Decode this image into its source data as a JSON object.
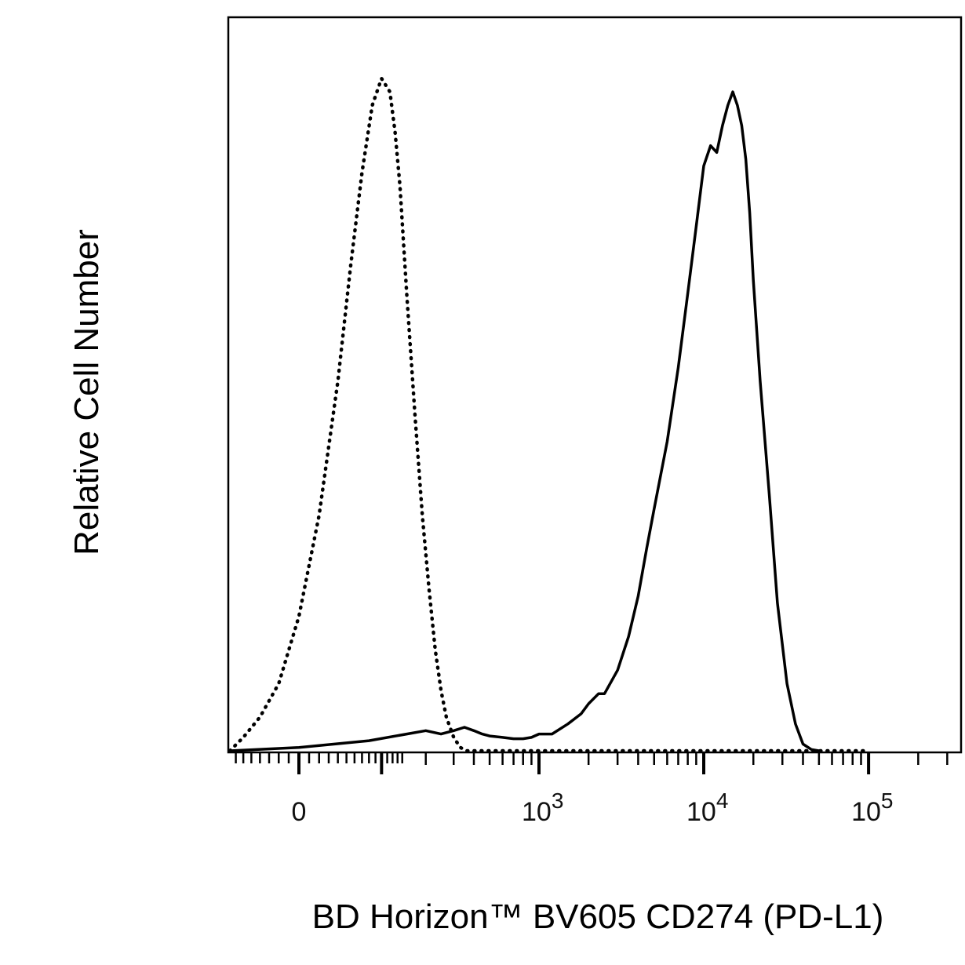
{
  "chart_data": {
    "type": "line",
    "title": "",
    "xlabel": "BD Horizon™ BV605 CD274 (PD-L1)",
    "ylabel": "Relative Cell Number",
    "x_scale": "biexponential",
    "xlim": [
      -150,
      200000
    ],
    "ylim": [
      0,
      1
    ],
    "grid": false,
    "legend": "none",
    "x_tick_labels": [
      {
        "value": 0,
        "base": "0",
        "exp": ""
      },
      {
        "value": 1000,
        "base": "10",
        "exp": "3"
      },
      {
        "value": 10000,
        "base": "10",
        "exp": "4"
      },
      {
        "value": 100000,
        "base": "10",
        "exp": "5"
      }
    ],
    "series": [
      {
        "style": "dotted",
        "color": "#000000",
        "x": [
          -90,
          -60,
          -40,
          -20,
          0,
          20,
          40,
          55,
          70,
          85,
          100,
          115,
          125,
          135,
          150,
          170,
          190,
          210,
          230,
          250,
          270,
          300,
          330,
          360,
          400,
          1000,
          10000,
          100000
        ],
        "y": [
          0.0,
          0.02,
          0.05,
          0.1,
          0.2,
          0.35,
          0.55,
          0.72,
          0.86,
          0.96,
          1.0,
          0.98,
          0.92,
          0.84,
          0.68,
          0.5,
          0.35,
          0.24,
          0.15,
          0.09,
          0.05,
          0.02,
          0.005,
          0.0,
          0.0,
          0.0,
          0.0,
          0.0
        ]
      },
      {
        "style": "solid",
        "color": "#000000",
        "x": [
          -80,
          0,
          80,
          150,
          200,
          250,
          300,
          350,
          400,
          450,
          500,
          600,
          700,
          800,
          900,
          1000,
          1200,
          1500,
          1800,
          2000,
          2300,
          2500,
          3000,
          3500,
          4000,
          4500,
          5000,
          6000,
          7000,
          8000,
          9000,
          10000,
          11000,
          12000,
          13000,
          14000,
          15000,
          16000,
          17000,
          18000,
          19000,
          20000,
          22000,
          25000,
          28000,
          32000,
          36000,
          40000,
          45000,
          50000
        ],
        "y": [
          0.0,
          0.005,
          0.015,
          0.025,
          0.03,
          0.025,
          0.03,
          0.035,
          0.03,
          0.025,
          0.022,
          0.02,
          0.018,
          0.018,
          0.02,
          0.025,
          0.025,
          0.04,
          0.055,
          0.07,
          0.085,
          0.085,
          0.12,
          0.17,
          0.23,
          0.3,
          0.36,
          0.46,
          0.57,
          0.68,
          0.78,
          0.87,
          0.9,
          0.89,
          0.93,
          0.96,
          0.98,
          0.96,
          0.93,
          0.88,
          0.8,
          0.7,
          0.55,
          0.38,
          0.22,
          0.1,
          0.04,
          0.01,
          0.002,
          0.0
        ]
      }
    ]
  }
}
